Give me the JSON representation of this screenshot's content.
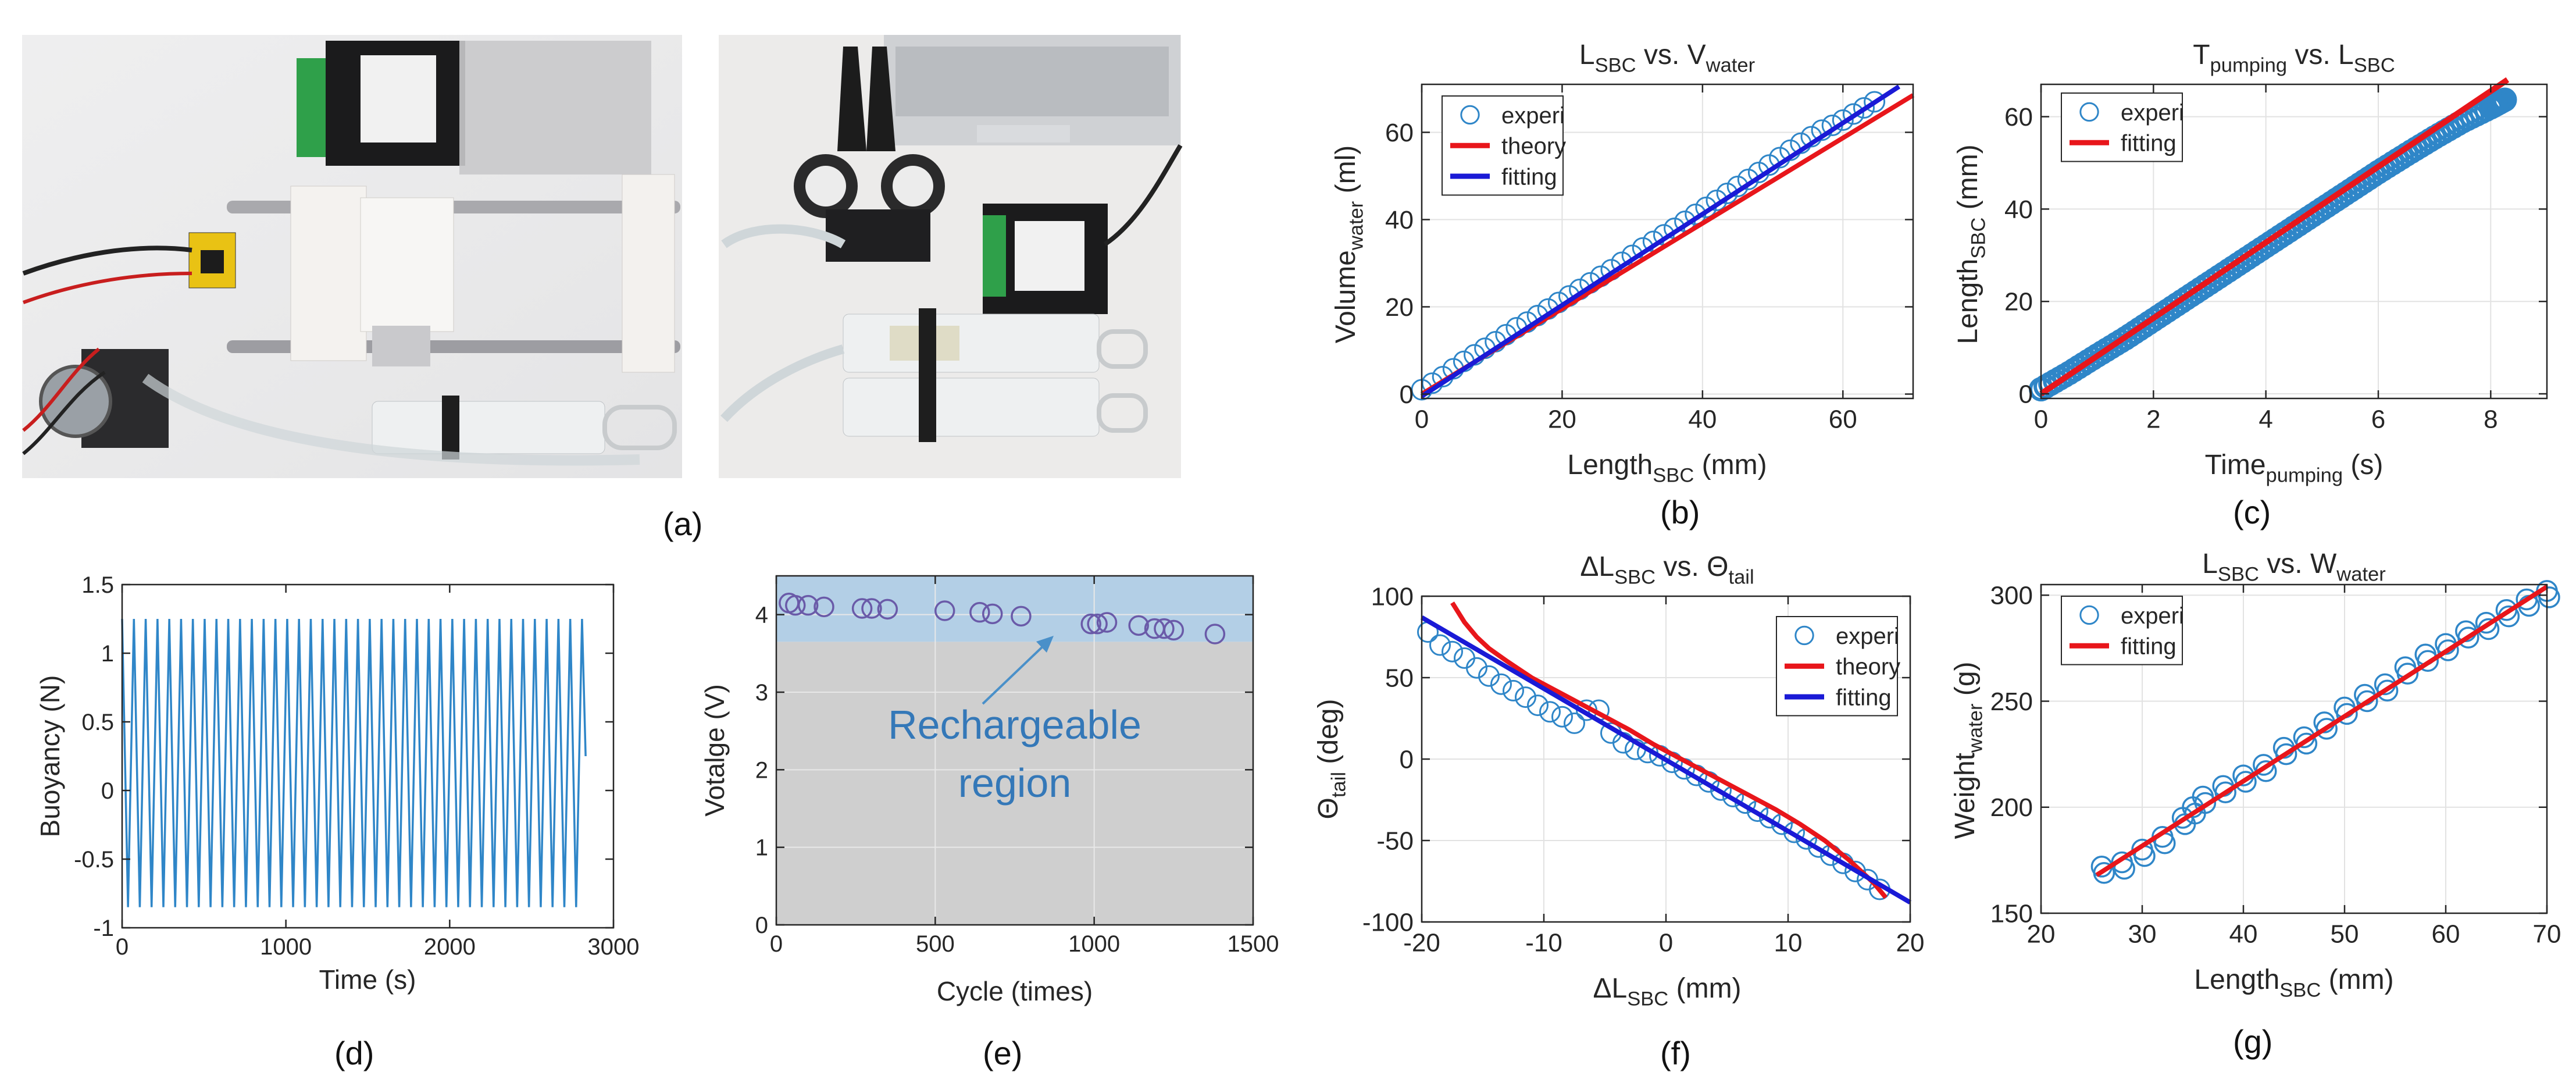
{
  "figure": {
    "panel_labels": {
      "a": "(a)",
      "b": "(b)",
      "c": "(c)",
      "d": "(d)",
      "e": "(e)",
      "f": "(f)",
      "g": "(g)"
    }
  },
  "chart_data": [
    {
      "panel": "(a)",
      "type": "image",
      "description_note": "Two photographs of the syringe-based buoyancy control hardware."
    },
    {
      "panel": "(b)",
      "type": "scatter",
      "title_main": "L",
      "title_sub": "SBC",
      "title_mid": " vs. V",
      "title_sub2": "water",
      "xlabel_main": "Length",
      "xlabel_sub": "SBC",
      "xlabel_tail": " (mm)",
      "ylabel_main": "Volume",
      "ylabel_sub": "water",
      "ylabel_tail": " (ml)",
      "xlim": [
        0,
        70
      ],
      "ylim": [
        -1,
        71
      ],
      "xticks": [
        0,
        20,
        40,
        60
      ],
      "yticks": [
        0,
        20,
        40,
        60
      ],
      "legend": [
        "experi",
        "theory",
        "fitting"
      ],
      "legend_position": "top-left",
      "series": [
        {
          "name": "experi",
          "kind": "markers",
          "color": "#2f86c8",
          "x": [
            0,
            1.5,
            3,
            4.5,
            6,
            7.5,
            9,
            10.5,
            12,
            13.5,
            15,
            16.5,
            18,
            19.5,
            21,
            22.5,
            24,
            25.5,
            27,
            28.5,
            30,
            31.5,
            33,
            34.5,
            36,
            37.5,
            39,
            40.5,
            42,
            43.5,
            45,
            46.5,
            48,
            49.5,
            51,
            52.5,
            54,
            55.5,
            57,
            58.5,
            60,
            61.5,
            63,
            64.5
          ],
          "y": [
            1,
            2.5,
            4,
            5.8,
            7.5,
            9,
            10.5,
            12,
            13.6,
            15.2,
            16.5,
            18,
            19.5,
            21,
            22.5,
            24,
            25.5,
            27,
            28.5,
            30.2,
            31.8,
            33.5,
            35,
            36.5,
            38,
            39.6,
            41.2,
            42.8,
            44.4,
            46,
            47.6,
            49.2,
            50.8,
            52.5,
            54.2,
            55.9,
            57.5,
            59,
            60.5,
            61.6,
            62.8,
            64.2,
            65.6,
            67
          ]
        },
        {
          "name": "theory",
          "kind": "line",
          "color": "#e8161b",
          "x": [
            0,
            70
          ],
          "y": [
            0,
            68.5
          ]
        },
        {
          "name": "fitting",
          "kind": "line",
          "color": "#1a1ad6",
          "x": [
            0,
            68
          ],
          "y": [
            -0.5,
            70.5
          ]
        }
      ]
    },
    {
      "panel": "(c)",
      "type": "scatter",
      "title_main": "T",
      "title_sub": "pumping",
      "title_mid": " vs. L",
      "title_sub2": "SBC",
      "xlabel_main": "Time",
      "xlabel_sub": "pumping",
      "xlabel_tail": " (s)",
      "ylabel_main": "Length",
      "ylabel_sub": "SBC",
      "ylabel_tail": " (mm)",
      "xlim": [
        0,
        9
      ],
      "ylim": [
        -1,
        67
      ],
      "xticks": [
        0,
        2,
        4,
        6,
        8
      ],
      "yticks": [
        0,
        20,
        40,
        60
      ],
      "legend": [
        "experi",
        "fitting"
      ],
      "legend_position": "top-left",
      "series": [
        {
          "name": "experi",
          "kind": "dense-markers",
          "color": "#2f86c8",
          "x": [
            0,
            0.5,
            1,
            1.5,
            2,
            2.5,
            3,
            3.5,
            4,
            4.5,
            5,
            5.5,
            6,
            6.5,
            7,
            7.5,
            8,
            8.3
          ],
          "y": [
            1,
            4.5,
            8.3,
            12,
            16,
            20,
            24,
            28,
            32,
            36,
            40,
            44,
            48,
            51.8,
            55.5,
            59,
            62,
            64
          ]
        },
        {
          "name": "fitting",
          "kind": "line",
          "color": "#e8161b",
          "x": [
            0,
            8.3
          ],
          "y": [
            0,
            68
          ]
        }
      ]
    },
    {
      "panel": "(d)",
      "type": "line",
      "xlabel": "Time (s)",
      "ylabel": "Buoyancy (N)",
      "xlim": [
        0,
        3000
      ],
      "ylim": [
        -1,
        1.5
      ],
      "xticks": [
        0,
        1000,
        2000,
        3000
      ],
      "yticks": [
        -1,
        -0.5,
        0,
        0.5,
        1,
        1.5
      ],
      "series": [
        {
          "name": "buoyancy",
          "color": "#2f86c8",
          "period_s": 72,
          "t_end": 2830,
          "max": 1.25,
          "min": -0.85
        }
      ]
    },
    {
      "panel": "(e)",
      "type": "scatter",
      "xlabel": "Cycle (times)",
      "ylabel": "Votalge (V)",
      "xlim": [
        0,
        1500
      ],
      "ylim": [
        0,
        4.5
      ],
      "xticks": [
        0,
        500,
        1000,
        1500
      ],
      "yticks": [
        0,
        1,
        2,
        3,
        4
      ],
      "region_label_line1": "Rechargeable",
      "region_label_line2": "region",
      "region_threshold_v": 3.65,
      "series": [
        {
          "name": "voltage",
          "color": "#6a5aa8",
          "x": [
            40,
            60,
            100,
            150,
            270,
            300,
            350,
            530,
            640,
            680,
            770,
            990,
            1010,
            1040,
            1140,
            1190,
            1220,
            1250,
            1380
          ],
          "y": [
            4.15,
            4.12,
            4.12,
            4.1,
            4.08,
            4.08,
            4.07,
            4.05,
            4.03,
            4.01,
            3.98,
            3.88,
            3.88,
            3.9,
            3.86,
            3.82,
            3.82,
            3.8,
            3.75
          ]
        }
      ]
    },
    {
      "panel": "(f)",
      "type": "scatter",
      "title_main": "ΔL",
      "title_sub": "SBC",
      "title_mid": " vs. Θ",
      "title_sub2": "tail",
      "xlabel_main": "ΔL",
      "xlabel_sub": "SBC",
      "xlabel_tail": " (mm)",
      "ylabel_main": "Θ",
      "ylabel_sub": "tail",
      "ylabel_tail": " (deg)",
      "xlim": [
        -20,
        20
      ],
      "ylim": [
        -100,
        100
      ],
      "xticks": [
        -20,
        -10,
        0,
        10,
        20
      ],
      "yticks": [
        -100,
        -50,
        0,
        50,
        100
      ],
      "legend": [
        "experi",
        "theory",
        "fitting"
      ],
      "legend_position": "top-right",
      "series": [
        {
          "name": "experi",
          "kind": "markers",
          "color": "#2f86c8",
          "x": [
            -19.5,
            -18.5,
            -17.5,
            -16.5,
            -15.5,
            -14.5,
            -13.5,
            -12.5,
            -11.5,
            -10.5,
            -9.5,
            -8.5,
            -7.5,
            -6.5,
            -5.5,
            -4.5,
            -3.5,
            -2.5,
            -1.5,
            -0.5,
            0.5,
            1.5,
            2.5,
            3.5,
            4.5,
            5.5,
            6.5,
            7.5,
            8.5,
            9.5,
            10.5,
            11.5,
            12.5,
            13.5,
            14.5,
            15.5,
            16.5,
            17.5
          ],
          "y": [
            78,
            70,
            66,
            62,
            56,
            51,
            46,
            42,
            38,
            33,
            29,
            26,
            22,
            30,
            30,
            16,
            10,
            6,
            4,
            2,
            -2,
            -6,
            -10,
            -14,
            -19,
            -23,
            -27,
            -32,
            -36,
            -40,
            -45,
            -49,
            -54,
            -59,
            -64,
            -69,
            -74,
            -80
          ]
        },
        {
          "name": "theory",
          "kind": "curve",
          "color": "#e8161b",
          "x": [
            -17.5,
            -16.5,
            -15.5,
            -14.5,
            -13,
            -11,
            -9,
            -7,
            -5,
            -3,
            -1,
            1,
            3,
            5,
            7,
            9,
            11,
            13,
            15,
            17,
            18
          ],
          "y": [
            96,
            84,
            75,
            68,
            60,
            50,
            42,
            34,
            26,
            18,
            9,
            1,
            -7,
            -15,
            -23,
            -31,
            -40,
            -50,
            -62,
            -76,
            -85
          ]
        },
        {
          "name": "fitting",
          "kind": "line",
          "color": "#1a1ad6",
          "x": [
            -20,
            20
          ],
          "y": [
            87,
            -88
          ]
        }
      ]
    },
    {
      "panel": "(g)",
      "type": "scatter",
      "title_main": "L",
      "title_sub": "SBC",
      "title_mid": " vs. W",
      "title_sub2": "water",
      "xlabel_main": "Length",
      "xlabel_sub": "SBC",
      "xlabel_tail": " (mm)",
      "ylabel_main": "Weight",
      "ylabel_sub": "water",
      "ylabel_tail": " (g)",
      "xlim": [
        20,
        70
      ],
      "ylim": [
        150,
        305
      ],
      "xticks": [
        20,
        30,
        40,
        50,
        60,
        70
      ],
      "yticks": [
        150,
        200,
        250,
        300
      ],
      "legend": [
        "experi",
        "fitting"
      ],
      "legend_position": "top-left",
      "series": [
        {
          "name": "experi",
          "kind": "markers",
          "color": "#2f86c8",
          "x": [
            26,
            28,
            30,
            32,
            34,
            35,
            36,
            38,
            40,
            42,
            44,
            46,
            48,
            50,
            52,
            54,
            56,
            58,
            60,
            62,
            64,
            66,
            68,
            70
          ],
          "y": [
            172,
            174,
            180,
            186,
            195,
            200,
            205,
            210,
            215,
            220,
            228,
            233,
            240,
            247,
            253,
            258,
            266,
            272,
            277,
            283,
            287,
            293,
            298,
            302
          ]
        },
        {
          "name": "fitting",
          "kind": "line",
          "color": "#e8161b",
          "x": [
            25.5,
            70
          ],
          "y": [
            168,
            304
          ]
        }
      ]
    }
  ]
}
